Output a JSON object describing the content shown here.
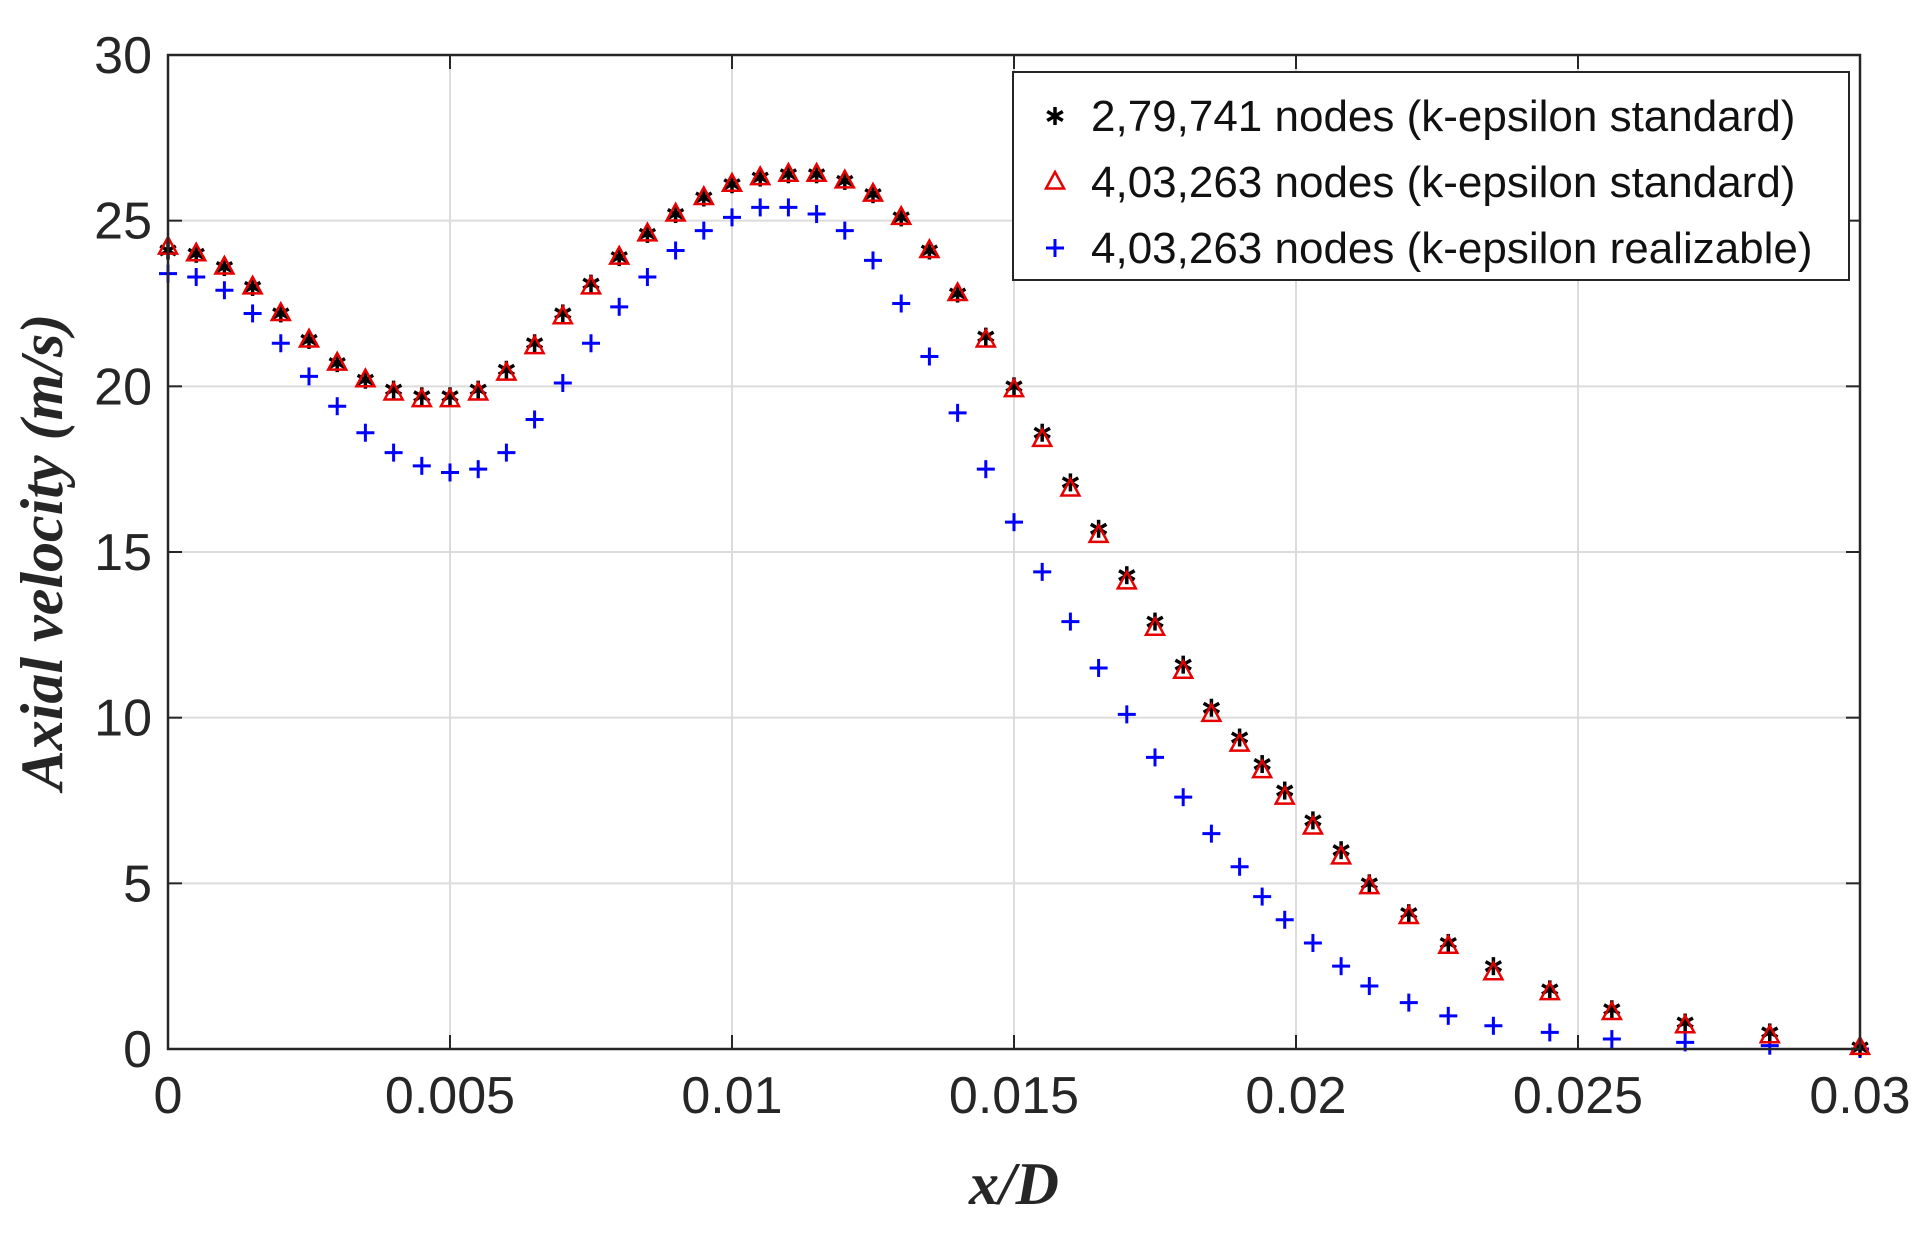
{
  "chart_data": {
    "type": "scatter",
    "xlabel": "x/D",
    "ylabel": "Axial velocity (m/s)",
    "xlim": [
      0,
      0.03
    ],
    "ylim": [
      0,
      30
    ],
    "grid": true,
    "legend_position": "top-right",
    "x_ticks": [
      0,
      0.005,
      0.01,
      0.015,
      0.02,
      0.025,
      0.03
    ],
    "x_tick_labels": [
      "0",
      "0.005",
      "0.01",
      "0.015",
      "0.02",
      "0.025",
      "0.03"
    ],
    "y_ticks": [
      0,
      5,
      10,
      15,
      20,
      25,
      30
    ],
    "y_tick_labels": [
      "0",
      "5",
      "10",
      "15",
      "20",
      "25",
      "30"
    ],
    "series": [
      {
        "name": "2,79,741 nodes (k-epsilon standard)",
        "marker": "asterisk",
        "color": "#000000",
        "x": [
          0,
          0.0005,
          0.001,
          0.0015,
          0.002,
          0.0025,
          0.003,
          0.0035,
          0.004,
          0.0045,
          0.005,
          0.0055,
          0.006,
          0.0065,
          0.007,
          0.0075,
          0.008,
          0.0085,
          0.009,
          0.0095,
          0.01,
          0.0105,
          0.011,
          0.0115,
          0.012,
          0.0125,
          0.013,
          0.0135,
          0.014,
          0.0145,
          0.015,
          0.0155,
          0.016,
          0.0165,
          0.017,
          0.0175,
          0.018,
          0.0185,
          0.019,
          0.0194,
          0.0198,
          0.0203,
          0.0208,
          0.0213,
          0.022,
          0.0227,
          0.0235,
          0.0245,
          0.0256,
          0.0269,
          0.0284,
          0.03
        ],
        "y": [
          24.1,
          24.0,
          23.6,
          23.0,
          22.2,
          21.4,
          20.7,
          20.2,
          19.9,
          19.7,
          19.7,
          19.9,
          20.5,
          21.3,
          22.2,
          23.1,
          23.9,
          24.6,
          25.2,
          25.7,
          26.1,
          26.3,
          26.4,
          26.4,
          26.2,
          25.8,
          25.1,
          24.1,
          22.8,
          21.5,
          20.0,
          18.6,
          17.1,
          15.7,
          14.3,
          12.9,
          11.6,
          10.3,
          9.4,
          8.6,
          7.8,
          6.9,
          6.0,
          5.0,
          4.1,
          3.2,
          2.5,
          1.8,
          1.2,
          0.8,
          0.5,
          0.05
        ]
      },
      {
        "name": "4,03,263 nodes (k-epsilon standard)",
        "marker": "triangle",
        "color": "#e60000",
        "x": [
          0,
          0.0005,
          0.001,
          0.0015,
          0.002,
          0.0025,
          0.003,
          0.0035,
          0.004,
          0.0045,
          0.005,
          0.0055,
          0.006,
          0.0065,
          0.007,
          0.0075,
          0.008,
          0.0085,
          0.009,
          0.0095,
          0.01,
          0.0105,
          0.011,
          0.0115,
          0.012,
          0.0125,
          0.013,
          0.0135,
          0.014,
          0.0145,
          0.015,
          0.0155,
          0.016,
          0.0165,
          0.017,
          0.0175,
          0.018,
          0.0185,
          0.019,
          0.0194,
          0.0198,
          0.0203,
          0.0208,
          0.0213,
          0.022,
          0.0227,
          0.0235,
          0.0245,
          0.0256,
          0.0269,
          0.0284,
          0.03
        ],
        "y": [
          24.2,
          24.0,
          23.6,
          23.0,
          22.2,
          21.4,
          20.7,
          20.2,
          19.8,
          19.6,
          19.6,
          19.8,
          20.4,
          21.2,
          22.1,
          23.0,
          23.9,
          24.6,
          25.2,
          25.7,
          26.1,
          26.3,
          26.4,
          26.4,
          26.2,
          25.8,
          25.1,
          24.1,
          22.8,
          21.4,
          19.9,
          18.4,
          16.9,
          15.5,
          14.1,
          12.7,
          11.4,
          10.1,
          9.2,
          8.4,
          7.6,
          6.7,
          5.8,
          4.9,
          4.0,
          3.1,
          2.3,
          1.7,
          1.1,
          0.7,
          0.4,
          0.05
        ]
      },
      {
        "name": "4,03,263 nodes (k-epsilon realizable)",
        "marker": "plus",
        "color": "#0000ff",
        "x": [
          0,
          0.0005,
          0.001,
          0.0015,
          0.002,
          0.0025,
          0.003,
          0.0035,
          0.004,
          0.0045,
          0.005,
          0.0055,
          0.006,
          0.0065,
          0.007,
          0.0075,
          0.008,
          0.0085,
          0.009,
          0.0095,
          0.01,
          0.0105,
          0.011,
          0.0115,
          0.012,
          0.0125,
          0.013,
          0.0135,
          0.014,
          0.0145,
          0.015,
          0.0155,
          0.016,
          0.0165,
          0.017,
          0.0175,
          0.018,
          0.0185,
          0.019,
          0.0194,
          0.0198,
          0.0203,
          0.0208,
          0.0213,
          0.022,
          0.0227,
          0.0235,
          0.0245,
          0.0256,
          0.0269,
          0.0284,
          0.03
        ],
        "y": [
          23.4,
          23.3,
          22.9,
          22.2,
          21.3,
          20.3,
          19.4,
          18.6,
          18.0,
          17.6,
          17.4,
          17.5,
          18.0,
          19.0,
          20.1,
          21.3,
          22.4,
          23.3,
          24.1,
          24.7,
          25.1,
          25.4,
          25.4,
          25.2,
          24.7,
          23.8,
          22.5,
          20.9,
          19.2,
          17.5,
          15.9,
          14.4,
          12.9,
          11.5,
          10.1,
          8.8,
          7.6,
          6.5,
          5.5,
          4.6,
          3.9,
          3.2,
          2.5,
          1.9,
          1.4,
          1.0,
          0.7,
          0.5,
          0.3,
          0.2,
          0.1,
          0.0
        ]
      }
    ]
  }
}
